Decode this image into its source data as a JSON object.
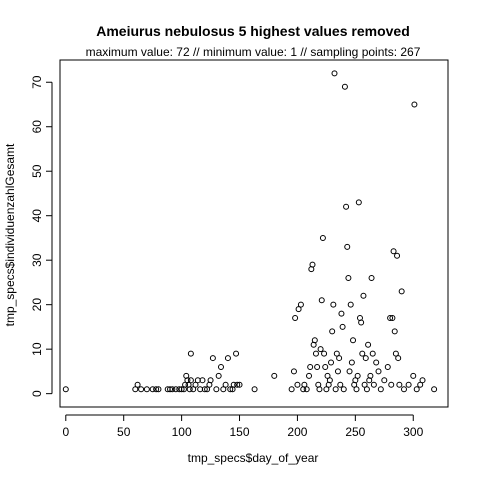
{
  "chart_data": {
    "type": "scatter",
    "title": "Ameiurus nebulosus  5 highest values removed",
    "subtitle": "maximum value: 72  //  minimum value: 1  // sampling points: 267",
    "xlabel": "tmp_specs$day_of_year",
    "ylabel": "tmp_specs$individuenzahlGesamt",
    "xlim": [
      -5,
      330
    ],
    "ylim": [
      -3,
      75
    ],
    "xticks": [
      "0",
      "50",
      "100",
      "150",
      "200",
      "250",
      "300"
    ],
    "yticks": [
      "0",
      "10",
      "20",
      "30",
      "40",
      "50",
      "60",
      "70"
    ],
    "grid": false,
    "legend": "none",
    "points": [
      [
        0,
        1
      ],
      [
        60,
        1
      ],
      [
        62,
        2
      ],
      [
        65,
        1
      ],
      [
        70,
        1
      ],
      [
        75,
        1
      ],
      [
        78,
        1
      ],
      [
        80,
        1
      ],
      [
        88,
        1
      ],
      [
        90,
        1
      ],
      [
        92,
        1
      ],
      [
        95,
        1
      ],
      [
        98,
        1
      ],
      [
        100,
        1
      ],
      [
        102,
        1
      ],
      [
        103,
        2
      ],
      [
        104,
        4
      ],
      [
        105,
        3
      ],
      [
        106,
        2
      ],
      [
        107,
        1
      ],
      [
        108,
        3
      ],
      [
        108,
        9
      ],
      [
        110,
        1
      ],
      [
        112,
        2
      ],
      [
        114,
        3
      ],
      [
        116,
        1
      ],
      [
        118,
        3
      ],
      [
        120,
        1
      ],
      [
        122,
        1
      ],
      [
        124,
        2
      ],
      [
        125,
        3
      ],
      [
        127,
        8
      ],
      [
        130,
        1
      ],
      [
        132,
        4
      ],
      [
        134,
        6
      ],
      [
        136,
        1
      ],
      [
        138,
        2
      ],
      [
        140,
        8
      ],
      [
        142,
        1
      ],
      [
        144,
        1
      ],
      [
        145,
        2
      ],
      [
        147,
        9
      ],
      [
        148,
        2
      ],
      [
        150,
        2
      ],
      [
        163,
        1
      ],
      [
        180,
        4
      ],
      [
        195,
        1
      ],
      [
        197,
        5
      ],
      [
        198,
        17
      ],
      [
        200,
        2
      ],
      [
        201,
        19
      ],
      [
        203,
        20
      ],
      [
        205,
        1
      ],
      [
        206,
        2
      ],
      [
        208,
        1
      ],
      [
        210,
        4
      ],
      [
        211,
        6
      ],
      [
        212,
        28
      ],
      [
        213,
        29
      ],
      [
        214,
        11
      ],
      [
        215,
        12
      ],
      [
        216,
        9
      ],
      [
        217,
        6
      ],
      [
        218,
        2
      ],
      [
        219,
        1
      ],
      [
        220,
        10
      ],
      [
        221,
        21
      ],
      [
        222,
        35
      ],
      [
        223,
        9
      ],
      [
        224,
        6
      ],
      [
        225,
        1
      ],
      [
        226,
        4
      ],
      [
        227,
        2
      ],
      [
        228,
        3
      ],
      [
        229,
        7
      ],
      [
        230,
        14
      ],
      [
        231,
        20
      ],
      [
        232,
        72
      ],
      [
        233,
        1
      ],
      [
        234,
        9
      ],
      [
        235,
        5
      ],
      [
        236,
        8
      ],
      [
        237,
        2
      ],
      [
        238,
        18
      ],
      [
        239,
        15
      ],
      [
        240,
        1
      ],
      [
        241,
        69
      ],
      [
        242,
        42
      ],
      [
        243,
        33
      ],
      [
        244,
        26
      ],
      [
        245,
        5
      ],
      [
        246,
        20
      ],
      [
        247,
        7
      ],
      [
        248,
        12
      ],
      [
        249,
        2
      ],
      [
        250,
        3
      ],
      [
        251,
        1
      ],
      [
        252,
        4
      ],
      [
        253,
        43
      ],
      [
        254,
        17
      ],
      [
        255,
        16
      ],
      [
        256,
        9
      ],
      [
        257,
        22
      ],
      [
        258,
        2
      ],
      [
        259,
        8
      ],
      [
        260,
        1
      ],
      [
        261,
        11
      ],
      [
        262,
        3
      ],
      [
        263,
        4
      ],
      [
        264,
        26
      ],
      [
        265,
        9
      ],
      [
        266,
        2
      ],
      [
        268,
        7
      ],
      [
        270,
        5
      ],
      [
        272,
        1
      ],
      [
        275,
        3
      ],
      [
        278,
        6
      ],
      [
        280,
        17
      ],
      [
        281,
        2
      ],
      [
        282,
        17
      ],
      [
        283,
        32
      ],
      [
        284,
        14
      ],
      [
        285,
        9
      ],
      [
        286,
        31
      ],
      [
        287,
        8
      ],
      [
        288,
        2
      ],
      [
        290,
        23
      ],
      [
        292,
        1
      ],
      [
        296,
        2
      ],
      [
        300,
        4
      ],
      [
        301,
        65
      ],
      [
        303,
        1
      ],
      [
        306,
        2
      ],
      [
        308,
        3
      ],
      [
        318,
        1
      ]
    ]
  }
}
